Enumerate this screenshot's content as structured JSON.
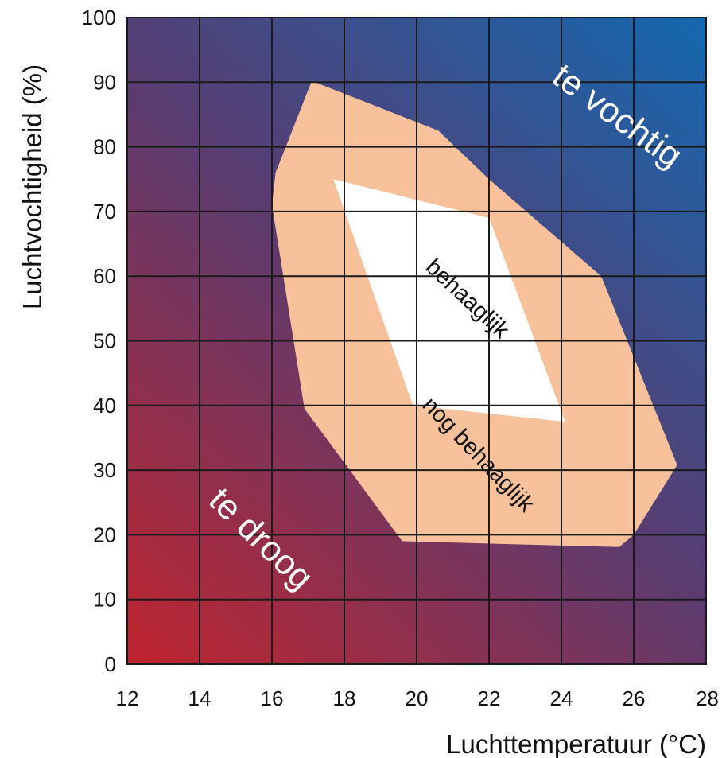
{
  "chart_data": {
    "type": "area",
    "xlabel": "Luchttemperatuur (°C)",
    "ylabel": "Luchtvochtigheid (%)",
    "xlim": [
      12,
      28
    ],
    "ylim": [
      0,
      100
    ],
    "x_ticks": [
      12,
      14,
      16,
      18,
      20,
      22,
      24,
      26,
      28
    ],
    "y_ticks": [
      0,
      10,
      20,
      30,
      40,
      50,
      60,
      70,
      80,
      90,
      100
    ],
    "grid": true,
    "background": {
      "description_colors": {
        "low_temp_low_humidity": "#c0242e",
        "high_temp_high_humidity": "#1468b0",
        "mid": "#5a3c70"
      }
    },
    "regions": [
      {
        "name": "nog behaaglijk",
        "color": "#f7c29b",
        "points": [
          [
            17.1,
            90.2
          ],
          [
            20.6,
            82.5
          ],
          [
            22.0,
            75.0
          ],
          [
            25.1,
            60.0
          ],
          [
            27.2,
            30.8
          ],
          [
            26.0,
            20.0
          ],
          [
            25.6,
            18.1
          ],
          [
            19.6,
            19.0
          ],
          [
            16.9,
            39.5
          ],
          [
            16.0,
            71.0
          ],
          [
            16.1,
            76.0
          ]
        ]
      },
      {
        "name": "behaaglijk",
        "color": "#ffffff",
        "points": [
          [
            17.7,
            75.0
          ],
          [
            22.0,
            69.0
          ],
          [
            24.1,
            37.5
          ],
          [
            19.9,
            40.0
          ]
        ]
      }
    ],
    "annotations": [
      {
        "text": "te vochtig",
        "x": 25.55,
        "y": 84.8,
        "angle": 36,
        "style": "light"
      },
      {
        "text": "te droog",
        "x": 15.7,
        "y": 19.4,
        "angle": 44,
        "style": "light"
      },
      {
        "text": "behaaglijk",
        "x": 21.4,
        "y": 56.5,
        "angle": 43,
        "style": "dark"
      },
      {
        "text": "nog behaaglijk",
        "x": 21.7,
        "y": 32.4,
        "angle": 46,
        "style": "dark"
      }
    ]
  }
}
